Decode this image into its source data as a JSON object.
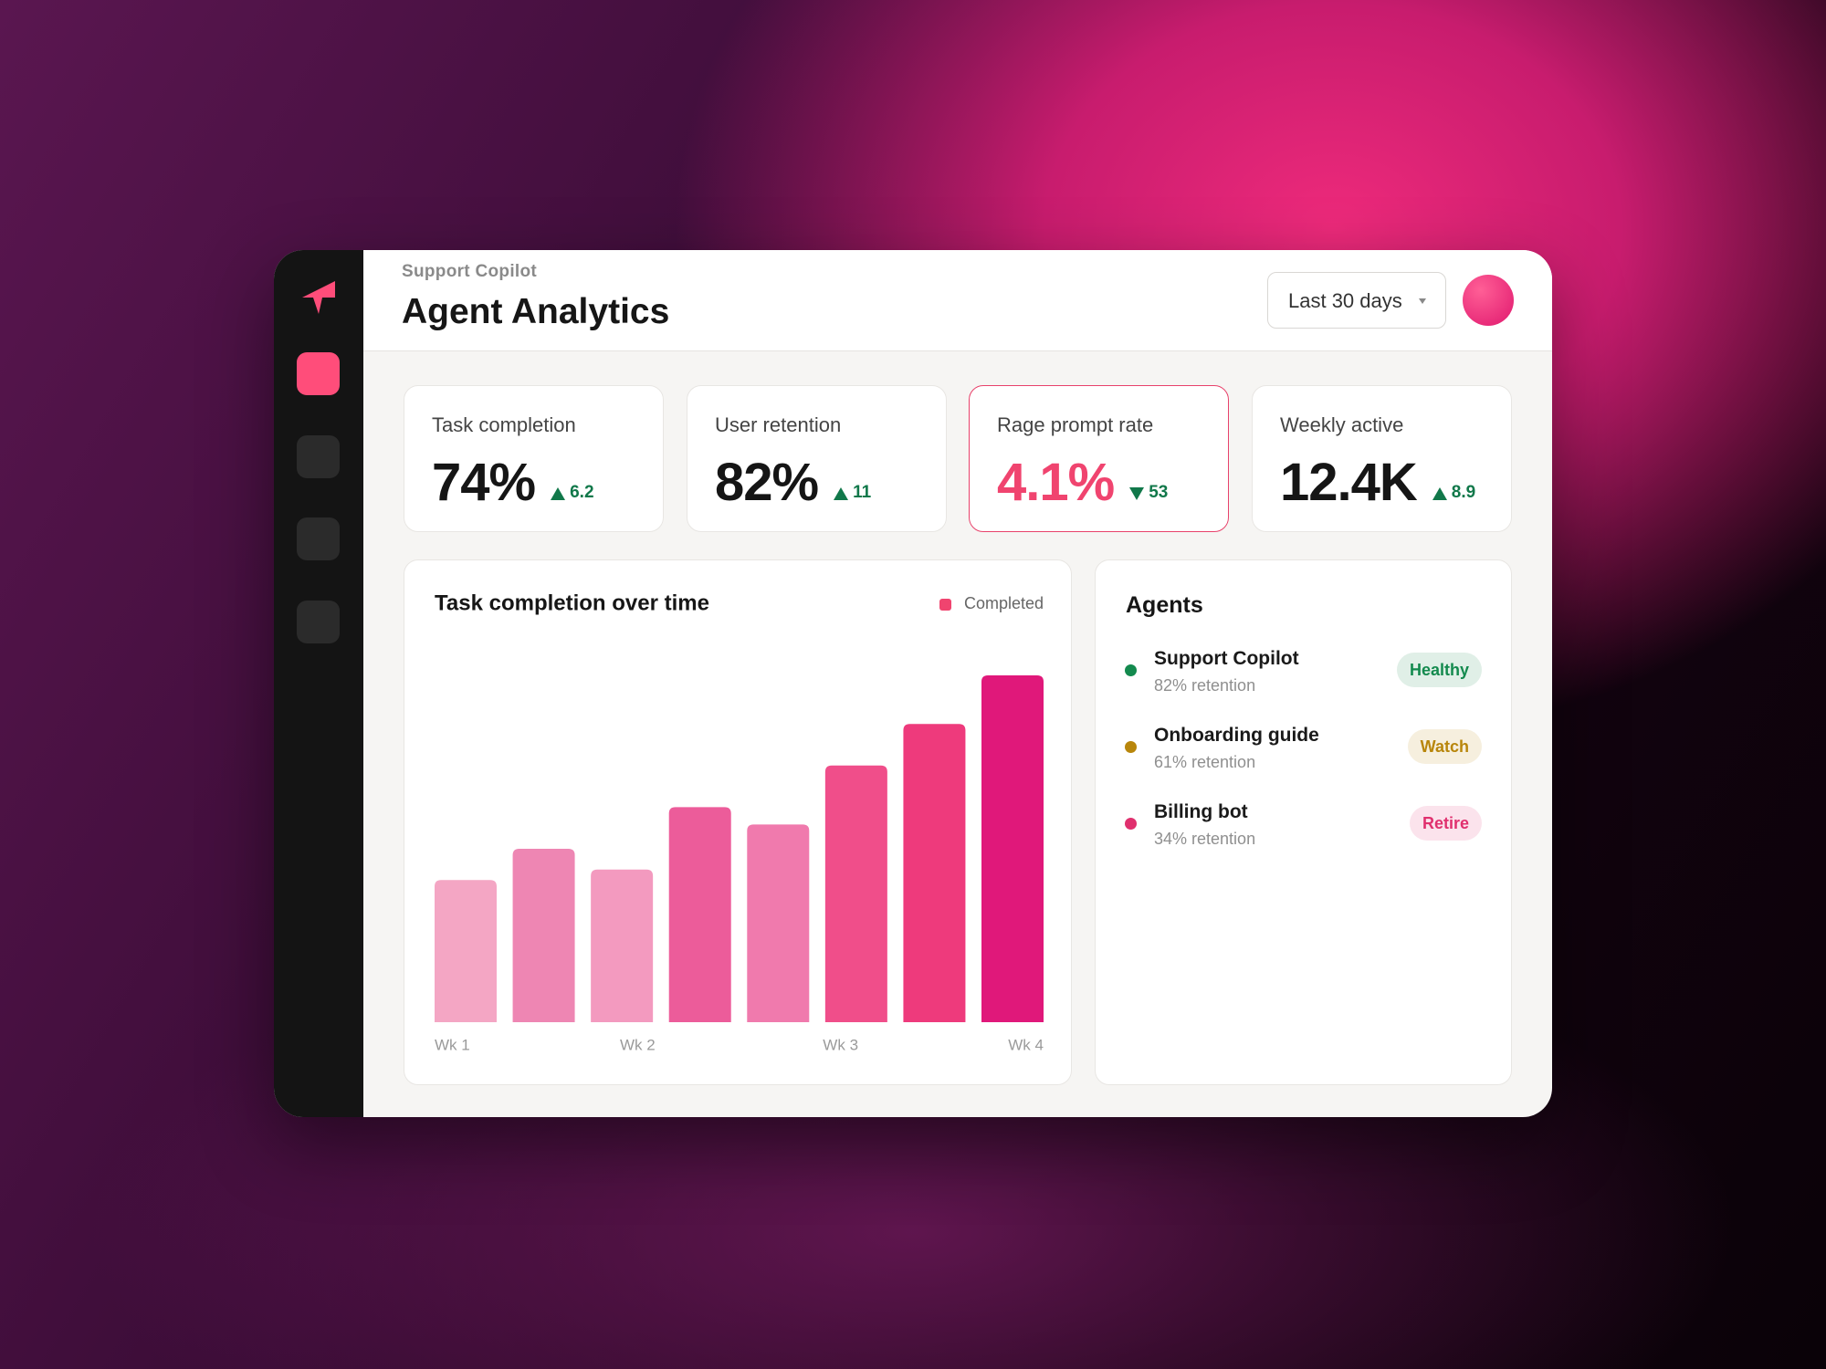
{
  "header": {
    "eyebrow": "Support Copilot",
    "title": "Agent Analytics",
    "range": "Last 30 days"
  },
  "kpis": [
    {
      "label": "Task completion",
      "value": "74%",
      "delta": "6.2",
      "trend": "up",
      "alert": false
    },
    {
      "label": "User retention",
      "value": "82%",
      "delta": "11",
      "trend": "up",
      "alert": false
    },
    {
      "label": "Rage prompt rate",
      "value": "4.1%",
      "delta": "53",
      "trend": "down",
      "alert": true
    },
    {
      "label": "Weekly active",
      "value": "12.4K",
      "delta": "8.9",
      "trend": "up",
      "alert": false
    }
  ],
  "chart_data": {
    "type": "bar",
    "title": "Task completion over time",
    "legend": "Completed",
    "legend_color": "#f0446f",
    "values": [
      41,
      50,
      44,
      62,
      57,
      74,
      86,
      100
    ],
    "colors": [
      "#f4a6c4",
      "#ee86b3",
      "#f39abf",
      "#ec5c9a",
      "#f07aad",
      "#f04e8a",
      "#ee3a7c",
      "#e0187a"
    ],
    "x_labels": [
      "Wk 1",
      "Wk 2",
      "Wk 3",
      "Wk 4"
    ]
  },
  "agents": {
    "title": "Agents",
    "rows": [
      {
        "name": "Support Copilot",
        "detail": "82% retention",
        "status": "Healthy",
        "color": "#138a4e"
      },
      {
        "name": "Onboarding guide",
        "detail": "61% retention",
        "status": "Watch",
        "color": "#b8860b"
      },
      {
        "name": "Billing bot",
        "detail": "34% retention",
        "status": "Retire",
        "color": "#e0306e"
      }
    ]
  }
}
